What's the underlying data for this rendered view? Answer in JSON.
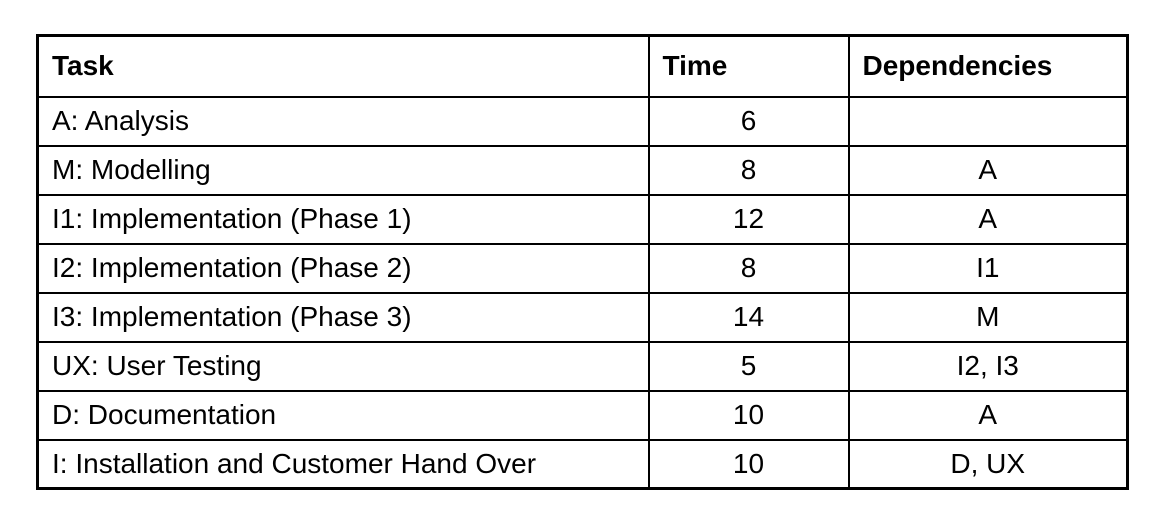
{
  "table": {
    "headers": {
      "task": "Task",
      "time": "Time",
      "dependencies": "Dependencies"
    },
    "rows": [
      {
        "task": "A: Analysis",
        "time": "6",
        "dependencies": ""
      },
      {
        "task": "M: Modelling",
        "time": "8",
        "dependencies": "A"
      },
      {
        "task": "I1: Implementation (Phase 1)",
        "time": "12",
        "dependencies": "A"
      },
      {
        "task": "I2: Implementation (Phase 2)",
        "time": "8",
        "dependencies": "I1"
      },
      {
        "task": "I3: Implementation (Phase 3)",
        "time": "14",
        "dependencies": "M"
      },
      {
        "task": "UX: User Testing",
        "time": "5",
        "dependencies": "I2, I3"
      },
      {
        "task": "D: Documentation",
        "time": "10",
        "dependencies": "A"
      },
      {
        "task": "I: Installation and Customer Hand Over",
        "time": "10",
        "dependencies": "D, UX"
      }
    ]
  }
}
